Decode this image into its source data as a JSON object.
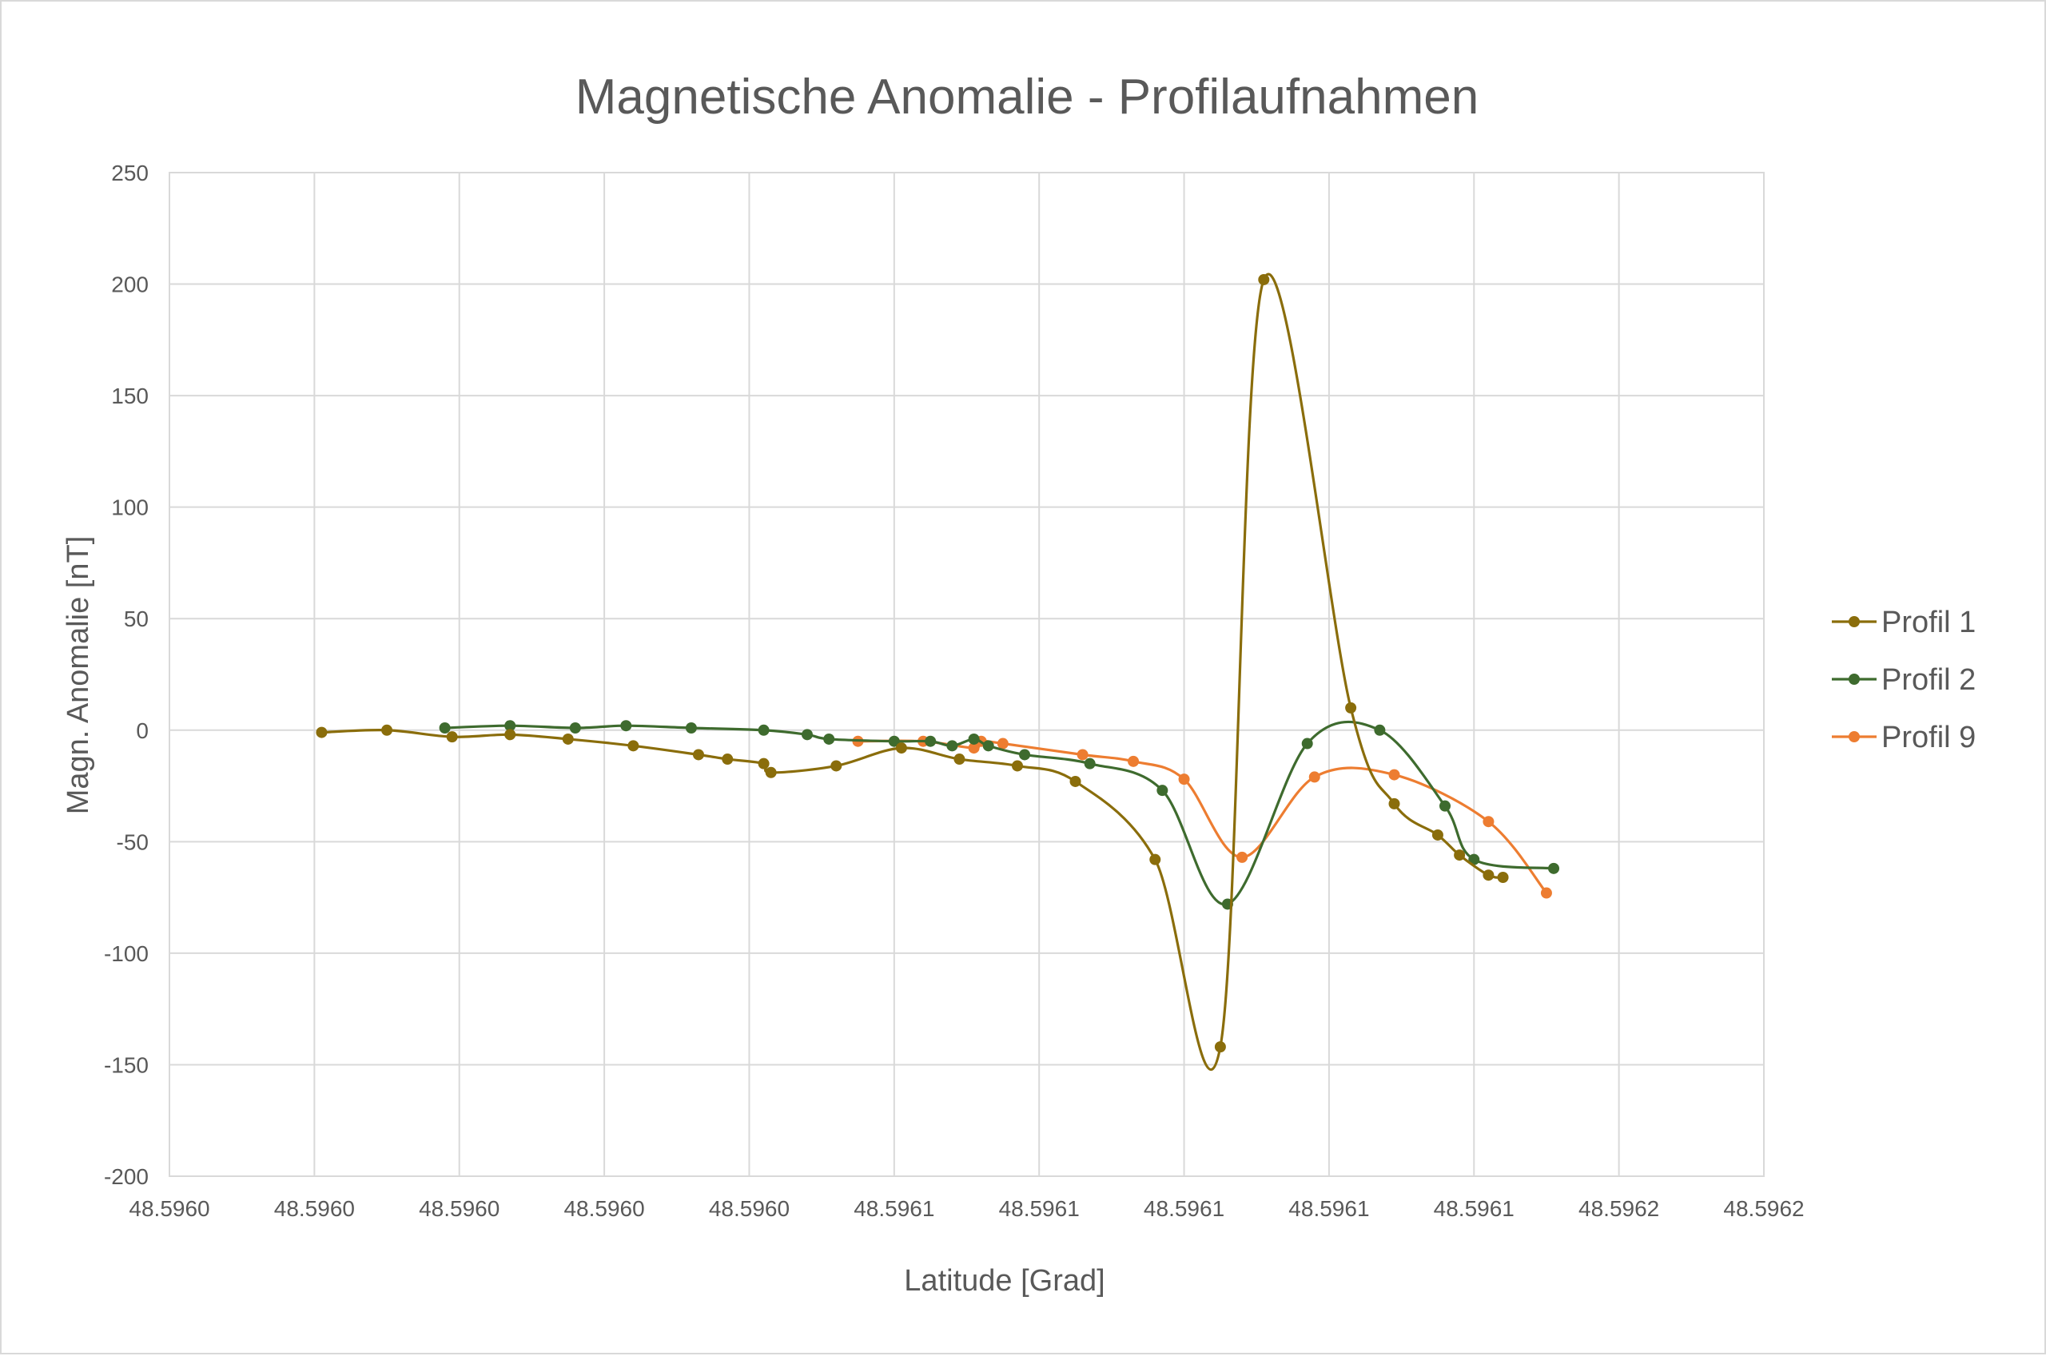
{
  "chart_data": {
    "type": "line",
    "title": "Magnetische Anomalie - Profilaufnahmen",
    "xlabel": "Latitude [Grad]",
    "ylabel": "Magn. Anomalie [nT]",
    "xlim": [
      48.596,
      48.59622
    ],
    "ylim": [
      -200,
      250
    ],
    "x_ticks": [
      48.596,
      48.59602,
      48.59604,
      48.59606,
      48.59608,
      48.5961,
      48.59612,
      48.59614,
      48.59616,
      48.59618,
      48.5962,
      48.59622
    ],
    "x_tick_labels": [
      "48.5960",
      "48.5960",
      "48.5960",
      "48.5960",
      "48.5960",
      "48.5961",
      "48.5961",
      "48.5961",
      "48.5961",
      "48.5961",
      "48.5962",
      "48.5962"
    ],
    "y_ticks": [
      250,
      200,
      150,
      100,
      50,
      0,
      -50,
      -100,
      -150,
      -200
    ],
    "y_tick_labels": [
      "250",
      "200",
      "150",
      "100",
      "50",
      "0",
      "-50",
      "-100",
      "-150",
      "-200"
    ],
    "grid": true,
    "legend_position": "right",
    "smooth": true,
    "series": [
      {
        "name": "Profil 1",
        "color": "#8a6d0b",
        "x": [
          48.596021,
          48.59603,
          48.596039,
          48.596047,
          48.596055,
          48.596064,
          48.596073,
          48.596077,
          48.596082,
          48.596083,
          48.596092,
          48.596101,
          48.596109,
          48.596117,
          48.596125,
          48.596136,
          48.596145,
          48.596151,
          48.596163,
          48.596169,
          48.596175,
          48.596178,
          48.596182,
          48.596184
        ],
        "y": [
          -1,
          0,
          -3,
          -2,
          -4,
          -7,
          -11,
          -13,
          -15,
          -19,
          -16,
          -8,
          -13,
          -16,
          -23,
          -58,
          -142,
          202,
          10,
          -33,
          -47,
          -56,
          -65,
          -66
        ],
        "points": [
          [
            48.596021,
            -1
          ],
          [
            48.59603,
            0
          ],
          [
            48.596039,
            -3
          ],
          [
            48.596047,
            -2
          ],
          [
            48.596055,
            -4
          ],
          [
            48.596064,
            -7
          ],
          [
            48.596073,
            -11
          ],
          [
            48.596077,
            -13
          ],
          [
            48.596082,
            -15
          ],
          [
            48.596083,
            -19
          ],
          [
            48.596092,
            -16
          ],
          [
            48.596101,
            -8
          ],
          [
            48.596109,
            -13
          ],
          [
            48.596117,
            -16
          ],
          [
            48.596125,
            -23
          ],
          [
            48.596136,
            -58
          ],
          [
            48.596145,
            -142
          ],
          [
            48.596151,
            202
          ],
          [
            48.596163,
            10
          ],
          [
            48.596169,
            -33
          ],
          [
            48.596175,
            -47
          ],
          [
            48.596178,
            -56
          ],
          [
            48.596182,
            -65
          ],
          [
            48.596184,
            -66
          ]
        ]
      },
      {
        "name": "Profil 2",
        "color": "#3e6b2e",
        "x": [
          48.596038,
          48.596047,
          48.596056,
          48.596063,
          48.596072,
          48.596082,
          48.596088,
          48.596091,
          48.5961,
          48.596105,
          48.596108,
          48.596111,
          48.596113,
          48.596118,
          48.596127,
          48.596137,
          48.596146,
          48.596157,
          48.596167,
          48.596176,
          48.59618,
          48.596191
        ],
        "y": [
          1,
          2,
          1,
          2,
          1,
          0,
          -2,
          -4,
          -5,
          -5,
          -7,
          -4,
          -7,
          -11,
          -15,
          -27,
          -78,
          -6,
          0,
          -34,
          -58,
          -62
        ],
        "points": [
          [
            48.596038,
            1
          ],
          [
            48.596047,
            2
          ],
          [
            48.596056,
            1
          ],
          [
            48.596063,
            2
          ],
          [
            48.596072,
            1
          ],
          [
            48.596082,
            0
          ],
          [
            48.596088,
            -2
          ],
          [
            48.596091,
            -4
          ],
          [
            48.5961,
            -5
          ],
          [
            48.596105,
            -5
          ],
          [
            48.596108,
            -7
          ],
          [
            48.596111,
            -4
          ],
          [
            48.596113,
            -7
          ],
          [
            48.596118,
            -11
          ],
          [
            48.596127,
            -15
          ],
          [
            48.596137,
            -27
          ],
          [
            48.596146,
            -78
          ],
          [
            48.596157,
            -6
          ],
          [
            48.596167,
            0
          ],
          [
            48.596176,
            -34
          ],
          [
            48.59618,
            -58
          ],
          [
            48.596191,
            -62
          ]
        ]
      },
      {
        "name": "Profil 9",
        "color": "#ed7d31",
        "x": [
          48.596095,
          48.596104,
          48.596111,
          48.596112,
          48.596115,
          48.596126,
          48.596133,
          48.59614,
          48.596148,
          48.596158,
          48.596169,
          48.596182,
          48.59619
        ],
        "y": [
          -5,
          -5,
          -8,
          -5,
          -6,
          -11,
          -14,
          -22,
          -57,
          -21,
          -20,
          -41,
          -73
        ],
        "points": [
          [
            48.596095,
            -5
          ],
          [
            48.596104,
            -5
          ],
          [
            48.596111,
            -8
          ],
          [
            48.596112,
            -5
          ],
          [
            48.596115,
            -6
          ],
          [
            48.596126,
            -11
          ],
          [
            48.596133,
            -14
          ],
          [
            48.59614,
            -22
          ],
          [
            48.596148,
            -57
          ],
          [
            48.596158,
            -21
          ],
          [
            48.596169,
            -20
          ],
          [
            48.596182,
            -41
          ],
          [
            48.59619,
            -73
          ]
        ]
      }
    ]
  }
}
